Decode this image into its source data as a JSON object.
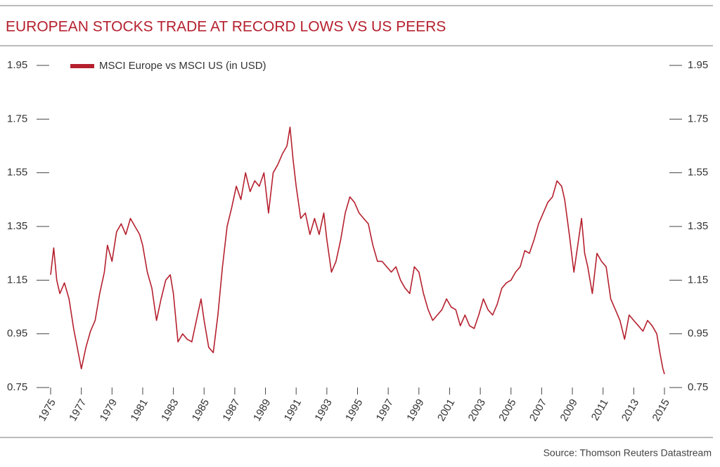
{
  "chart_data": {
    "type": "line",
    "title": "EUROPEAN STOCKS TRADE AT RECORD LOWS VS US PEERS",
    "source": "Source: Thomson Reuters Datastream",
    "x": [
      1975.0,
      1975.2,
      1975.4,
      1975.6,
      1975.9,
      1976.2,
      1976.5,
      1976.8,
      1977.0,
      1977.3,
      1977.6,
      1977.9,
      1978.2,
      1978.5,
      1978.7,
      1979.0,
      1979.3,
      1979.6,
      1979.9,
      1980.2,
      1980.5,
      1980.8,
      1981.0,
      1981.3,
      1981.6,
      1981.9,
      1982.2,
      1982.5,
      1982.8,
      1983.0,
      1983.3,
      1983.6,
      1983.9,
      1984.2,
      1984.5,
      1984.8,
      1985.0,
      1985.3,
      1985.6,
      1985.9,
      1986.2,
      1986.5,
      1986.8,
      1987.1,
      1987.4,
      1987.7,
      1988.0,
      1988.3,
      1988.6,
      1988.9,
      1989.2,
      1989.5,
      1989.8,
      1990.1,
      1990.4,
      1990.6,
      1990.8,
      1991.0,
      1991.3,
      1991.6,
      1991.9,
      1992.2,
      1992.5,
      1992.8,
      1993.0,
      1993.3,
      1993.6,
      1993.9,
      1994.2,
      1994.5,
      1994.8,
      1995.1,
      1995.4,
      1995.7,
      1996.0,
      1996.3,
      1996.6,
      1996.9,
      1997.2,
      1997.5,
      1997.8,
      1998.1,
      1998.4,
      1998.7,
      1999.0,
      1999.3,
      1999.6,
      1999.9,
      2000.2,
      2000.5,
      2000.8,
      2001.1,
      2001.4,
      2001.7,
      2002.0,
      2002.3,
      2002.6,
      2002.9,
      2003.2,
      2003.5,
      2003.8,
      2004.1,
      2004.4,
      2004.7,
      2005.0,
      2005.3,
      2005.6,
      2005.9,
      2006.2,
      2006.5,
      2006.8,
      2007.1,
      2007.4,
      2007.7,
      2008.0,
      2008.3,
      2008.5,
      2008.8,
      2009.1,
      2009.4,
      2009.6,
      2009.8,
      2010.0,
      2010.3,
      2010.6,
      2010.9,
      2011.2,
      2011.5,
      2011.8,
      2012.1,
      2012.4,
      2012.7,
      2013.0,
      2013.3,
      2013.6,
      2013.9,
      2014.2,
      2014.5,
      2014.7,
      2014.9,
      2015.0
    ],
    "series": [
      {
        "name": "MSCI Europe vs MSCI US (in USD)",
        "color": "#b5202e",
        "values": [
          1.17,
          1.27,
          1.15,
          1.1,
          1.14,
          1.08,
          0.97,
          0.88,
          0.82,
          0.9,
          0.96,
          1.0,
          1.1,
          1.18,
          1.28,
          1.22,
          1.33,
          1.36,
          1.32,
          1.38,
          1.35,
          1.32,
          1.28,
          1.18,
          1.12,
          1.0,
          1.08,
          1.15,
          1.17,
          1.1,
          0.92,
          0.95,
          0.93,
          0.92,
          1.0,
          1.08,
          1.0,
          0.9,
          0.88,
          1.02,
          1.2,
          1.35,
          1.42,
          1.5,
          1.45,
          1.55,
          1.48,
          1.52,
          1.5,
          1.55,
          1.4,
          1.55,
          1.58,
          1.62,
          1.65,
          1.72,
          1.6,
          1.5,
          1.38,
          1.4,
          1.32,
          1.38,
          1.32,
          1.4,
          1.3,
          1.18,
          1.22,
          1.3,
          1.4,
          1.46,
          1.44,
          1.4,
          1.38,
          1.36,
          1.28,
          1.22,
          1.22,
          1.2,
          1.18,
          1.2,
          1.15,
          1.12,
          1.1,
          1.2,
          1.18,
          1.1,
          1.04,
          1.0,
          1.02,
          1.04,
          1.08,
          1.05,
          1.04,
          0.98,
          1.02,
          0.98,
          0.97,
          1.02,
          1.08,
          1.04,
          1.02,
          1.06,
          1.12,
          1.14,
          1.15,
          1.18,
          1.2,
          1.26,
          1.25,
          1.3,
          1.36,
          1.4,
          1.44,
          1.46,
          1.52,
          1.5,
          1.45,
          1.32,
          1.18,
          1.3,
          1.38,
          1.25,
          1.2,
          1.1,
          1.25,
          1.22,
          1.2,
          1.08,
          1.04,
          1.0,
          0.93,
          1.02,
          1.0,
          0.98,
          0.96,
          1.0,
          0.98,
          0.95,
          0.88,
          0.82,
          0.8
        ]
      }
    ],
    "xlim": [
      1975,
      2015
    ],
    "xticks": [
      1975,
      1977,
      1979,
      1981,
      1983,
      1985,
      1987,
      1989,
      1991,
      1993,
      1995,
      1997,
      1999,
      2001,
      2003,
      2005,
      2007,
      2009,
      2011,
      2013,
      2015
    ],
    "ylim": [
      0.75,
      1.95
    ],
    "yticks": [
      0.75,
      0.95,
      1.15,
      1.35,
      1.55,
      1.75,
      1.95
    ]
  }
}
